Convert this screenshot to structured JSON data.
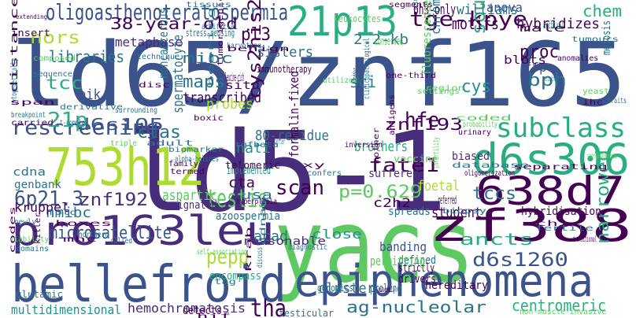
{
  "palette": {
    "background": "#ffffff",
    "dark_purple": "#440154",
    "indigo": "#472d7b",
    "blue": "#3b528b",
    "slate_blue": "#2c728e",
    "teal": "#21918c",
    "green_teal": "#28ae80",
    "green": "#5ec962",
    "lime": "#addc30",
    "yellow": "#fde725"
  },
  "words": [
    {
      "text": "ld65/znf165",
      "color": "#3b528b"
    },
    {
      "text": "ld5-1",
      "color": "#472d7b"
    },
    {
      "text": "yacs",
      "color": "#5ec962"
    },
    {
      "text": "epiphenomena",
      "color": "#3b528b"
    },
    {
      "text": "bellefroid",
      "color": "#3b528b"
    },
    {
      "text": "pro163leu",
      "color": "#472d7b"
    },
    {
      "text": "d6s306",
      "color": "#28ae80"
    },
    {
      "text": "zf388",
      "color": "#440154"
    },
    {
      "text": "753h12",
      "color": "#addc30"
    },
    {
      "text": "638d7",
      "color": "#440154"
    },
    {
      "text": "21p13",
      "color": "#28ae80"
    },
    {
      "text": "oligoasthenoteratospermia",
      "color": "#3b528b"
    },
    {
      "text": "tge-kpye",
      "color": "#440154"
    },
    {
      "text": "38-year-old",
      "color": "#440154"
    },
    {
      "text": "subclass",
      "color": "#28ae80"
    },
    {
      "text": "rescreening",
      "color": "#3b528b"
    },
    {
      "text": "fate1",
      "color": "#440154"
    },
    {
      "text": "d6s105",
      "color": "#3b528b"
    },
    {
      "text": "znf193",
      "color": "#440154"
    },
    {
      "text": "microsatellite",
      "color": "#3b528b"
    },
    {
      "text": "p=0.629",
      "color": "#5ec962"
    },
    {
      "text": "testis",
      "color": "#5ec962"
    },
    {
      "text": "6p21.3",
      "color": "#3b528b"
    },
    {
      "text": "znf192",
      "color": "#472d7b"
    },
    {
      "text": "d6s1260",
      "color": "#3b528b"
    },
    {
      "text": "ancts",
      "color": "#28ae80"
    },
    {
      "text": "centromeric",
      "color": "#28ae80"
    },
    {
      "text": "ag-nucleolar",
      "color": "#2c728e"
    },
    {
      "text": "hemochromatosis",
      "color": "#472d7b"
    },
    {
      "text": "cys2his2",
      "color": "#440154"
    },
    {
      "text": "southern",
      "color": "#28ae80"
    },
    {
      "text": "chromosomes",
      "color": "#2c728e"
    },
    {
      "text": "hfe",
      "color": "#440154"
    },
    {
      "text": "nors",
      "color": "#addc30"
    },
    {
      "text": "libraries",
      "color": "#2c728e"
    },
    {
      "text": "pl3",
      "color": "#440154"
    },
    {
      "text": "ctas",
      "color": "#2c728e"
    },
    {
      "text": "scan",
      "color": "#440154"
    },
    {
      "text": "tccs",
      "color": "#2c728e"
    },
    {
      "text": "nmibc",
      "color": "#2c728e"
    },
    {
      "text": "pepp",
      "color": "#addc30"
    },
    {
      "text": "tha",
      "color": "#440154"
    },
    {
      "text": "cluster",
      "color": "#2c728e"
    },
    {
      "text": "multidimensional",
      "color": "#21918c"
    },
    {
      "text": "williams",
      "color": "#2c728e"
    },
    {
      "text": "hybridizes",
      "color": "#440154"
    },
    {
      "text": "chem",
      "color": "#28ae80"
    },
    {
      "text": "motifs",
      "color": "#440154"
    },
    {
      "text": "bh3-only",
      "color": "#440154"
    },
    {
      "text": "anova",
      "color": "#3b528b"
    },
    {
      "text": "21p",
      "color": "#28ae80"
    },
    {
      "text": "tcc",
      "color": "#28ae80"
    },
    {
      "text": "bik",
      "color": "#3b528b"
    },
    {
      "text": "mibc",
      "color": "#2c728e"
    },
    {
      "text": "maps",
      "color": "#2c728e"
    },
    {
      "text": "sci",
      "color": "#2c728e"
    },
    {
      "text": "cys",
      "color": "#21918c"
    },
    {
      "text": "proc",
      "color": "#440154"
    },
    {
      "text": "bph",
      "color": "#2c728e"
    },
    {
      "text": "narrowed",
      "color": "#28ae80"
    },
    {
      "text": "2.2-kb",
      "color": "#2c728e"
    },
    {
      "text": "sisters",
      "color": "#2c728e"
    },
    {
      "text": "transcribed",
      "color": "#440154"
    },
    {
      "text": "probes",
      "color": "#addc30"
    },
    {
      "text": "noncancerous",
      "color": "#2c728e"
    },
    {
      "text": "spermatocyte",
      "color": "#2c728e"
    },
    {
      "text": "80-residue",
      "color": "#2c728e"
    },
    {
      "text": "nati",
      "color": "#21918c"
    },
    {
      "text": "brothers",
      "color": "#28ae80"
    },
    {
      "text": "foetal",
      "color": "#addc30"
    },
    {
      "text": "c2h2",
      "color": "#440154"
    },
    {
      "text": "usa",
      "color": "#2c728e"
    },
    {
      "text": "cta",
      "color": "#440154"
    },
    {
      "text": "student",
      "color": "#440154"
    },
    {
      "text": "acad",
      "color": "#2c728e"
    },
    {
      "text": "aspartic",
      "color": "#5ec962"
    },
    {
      "text": "designated",
      "color": "#472d7b"
    },
    {
      "text": "kruppel",
      "color": "#440154"
    },
    {
      "text": "genbank",
      "color": "#2c728e"
    },
    {
      "text": "metaphase",
      "color": "#472d7b"
    },
    {
      "text": "hybridisation",
      "color": "#440154"
    },
    {
      "text": "spreads",
      "color": "#2c728e"
    },
    {
      "text": "ffpe",
      "color": "#3b528b"
    },
    {
      "text": "close",
      "color": "#21918c"
    },
    {
      "text": "banding",
      "color": "#3b528b"
    },
    {
      "text": "defined",
      "color": "#2c728e"
    },
    {
      "text": "strictly",
      "color": "#440154"
    },
    {
      "text": "drivers",
      "color": "#440154"
    },
    {
      "text": "permitting",
      "color": "#5ec962"
    },
    {
      "text": "hereditary",
      "color": "#440154"
    },
    {
      "text": "proline",
      "color": "#2c728e"
    },
    {
      "text": "genomics",
      "color": "#2c728e"
    },
    {
      "text": "encompass",
      "color": "#28ae80"
    },
    {
      "text": "glutamic",
      "color": "#2c728e"
    },
    {
      "text": "detects",
      "color": "#440154"
    },
    {
      "text": "testicular",
      "color": "#2c728e"
    },
    {
      "text": "cdna",
      "color": "#2c728e"
    },
    {
      "text": "biased",
      "color": "#472d7b"
    },
    {
      "text": "suffered",
      "color": "#472d7b"
    },
    {
      "text": "implemented",
      "color": "#21918c"
    },
    {
      "text": "vaccine",
      "color": "#5ec962"
    },
    {
      "text": "telomeric",
      "color": "#440154"
    },
    {
      "text": "reasonable",
      "color": "#472d7b"
    },
    {
      "text": "formalin-fixed",
      "color": "#440154"
    },
    {
      "text": "azoospermia",
      "color": "#2c728e"
    },
    {
      "text": "fluorescence",
      "color": "#5ec962"
    },
    {
      "text": "one-third",
      "color": "#440154"
    },
    {
      "text": "tumorigenic",
      "color": "#440154"
    },
    {
      "text": "immunotherapy",
      "color": "#440154"
    },
    {
      "text": "leucine-rich",
      "color": "#440154"
    },
    {
      "text": "situ",
      "color": "#440154"
    },
    {
      "text": "insert",
      "color": "#440154"
    },
    {
      "text": "distance",
      "color": "#440154"
    },
    {
      "text": "cytogenetically",
      "color": "#2c728e"
    },
    {
      "text": "leukocytes",
      "color": "#5ec962"
    },
    {
      "text": "conserved",
      "color": "#5ec962"
    },
    {
      "text": "blots",
      "color": "#440154"
    },
    {
      "text": "meiosis",
      "color": "#2c728e"
    },
    {
      "text": "archival",
      "color": "#21918c"
    },
    {
      "text": "male",
      "color": "#440154"
    },
    {
      "text": "karyotype",
      "color": "#2c728e"
    },
    {
      "text": "benign",
      "color": "#440154"
    },
    {
      "text": "stress-sensing",
      "color": "#2c728e"
    },
    {
      "text": "artificial",
      "color": "#2c728e"
    },
    {
      "text": "tissues",
      "color": "#2c728e"
    },
    {
      "text": "segments",
      "color": "#440154"
    },
    {
      "text": "extending",
      "color": "#440154"
    },
    {
      "text": "stimuli",
      "color": "#2c728e"
    },
    {
      "text": "tumours",
      "color": "#2c728e"
    },
    {
      "text": "anomalies",
      "color": "#440154"
    },
    {
      "text": "composed",
      "color": "#5ec962"
    },
    {
      "text": "sequence",
      "color": "#2c728e"
    },
    {
      "text": "technique",
      "color": "#2c728e"
    },
    {
      "text": "utilized",
      "color": "#5ec962"
    },
    {
      "text": "bladder",
      "color": "#2c728e"
    },
    {
      "text": "disc",
      "color": "#440154"
    },
    {
      "text": "region",
      "color": "#5ec962"
    },
    {
      "text": "settings",
      "color": "#5ec962"
    },
    {
      "text": "retained",
      "color": "#2c728e"
    },
    {
      "text": "ihc",
      "color": "#440154"
    },
    {
      "text": "yeast",
      "color": "#5ec962"
    },
    {
      "text": "traits",
      "color": "#2c728e"
    },
    {
      "text": "span",
      "color": "#440154"
    },
    {
      "text": "derivative",
      "color": "#2c728e"
    },
    {
      "text": "surrounding",
      "color": "#2c728e"
    },
    {
      "text": "bearing",
      "color": "#2c728e"
    },
    {
      "text": "clinicopathological",
      "color": "#2c728e"
    },
    {
      "text": "breakpoint",
      "color": "#2c728e"
    },
    {
      "text": "carried",
      "color": "#440154"
    },
    {
      "text": "t-complex",
      "color": "#2c728e"
    },
    {
      "text": "boxic",
      "color": "#440154"
    },
    {
      "text": "coded",
      "color": "#5ec962"
    },
    {
      "text": "probability",
      "color": "#5ec962"
    },
    {
      "text": "urinary",
      "color": "#440154"
    },
    {
      "text": "triple",
      "color": "#5ec962"
    },
    {
      "text": "adult",
      "color": "#2c728e"
    },
    {
      "text": "biomarker",
      "color": "#2c728e"
    },
    {
      "text": "alpha-helices",
      "color": "#2c728e"
    },
    {
      "text": "tgfbeta",
      "color": "#2c728e"
    },
    {
      "text": "inversion",
      "color": "#440154"
    },
    {
      "text": "antigens",
      "color": "#440154"
    },
    {
      "text": "database",
      "color": "#2c728e"
    },
    {
      "text": "oligomerization",
      "color": "#440154"
    },
    {
      "text": "separating",
      "color": "#440154"
    },
    {
      "text": "spermatogenesis",
      "color": "#5ec962"
    },
    {
      "text": "family",
      "color": "#440154"
    },
    {
      "text": "termed",
      "color": "#440154"
    },
    {
      "text": "carrier",
      "color": "#2c728e"
    },
    {
      "text": "xy",
      "color": "#440154"
    },
    {
      "text": "confers",
      "color": "#2c728e"
    },
    {
      "text": "mother",
      "color": "#440154"
    },
    {
      "text": "infertility",
      "color": "#5ec962"
    },
    {
      "text": "biopsy",
      "color": "#2c728e"
    },
    {
      "text": "referred",
      "color": "#440154"
    },
    {
      "text": "chi",
      "color": "#440154"
    },
    {
      "text": "fertile",
      "color": "#2c728e"
    },
    {
      "text": "transitional",
      "color": "#440154"
    },
    {
      "text": "newly",
      "color": "#2c728e"
    },
    {
      "text": "fold",
      "color": "#2c728e"
    },
    {
      "text": "boxes",
      "color": "#440154"
    },
    {
      "text": "hyperplasia",
      "color": "#440154"
    },
    {
      "text": "viability",
      "color": "#5ec962"
    },
    {
      "text": "northern",
      "color": "#2c728e"
    },
    {
      "text": "called",
      "color": "#2c728e"
    },
    {
      "text": "mhc",
      "color": "#440154"
    },
    {
      "text": "self-association",
      "color": "#5ec962"
    },
    {
      "text": "diagnostic",
      "color": "#2c728e"
    },
    {
      "text": "domains",
      "color": "#2c728e"
    },
    {
      "text": "killer",
      "color": "#440154"
    },
    {
      "text": "codes",
      "color": "#440154"
    },
    {
      "text": "cdnas",
      "color": "#2c728e"
    },
    {
      "text": "discuss",
      "color": "#2c728e"
    },
    {
      "text": "tag",
      "color": "#2c728e"
    },
    {
      "text": "krab",
      "color": "#440154"
    },
    {
      "text": "assembly",
      "color": "#440154"
    },
    {
      "text": "hif",
      "color": "#440154"
    },
    {
      "text": "non-muscle-invasive",
      "color": "#5ec962"
    },
    {
      "text": "paraffin-embedded",
      "color": "#440154"
    }
  ]
}
